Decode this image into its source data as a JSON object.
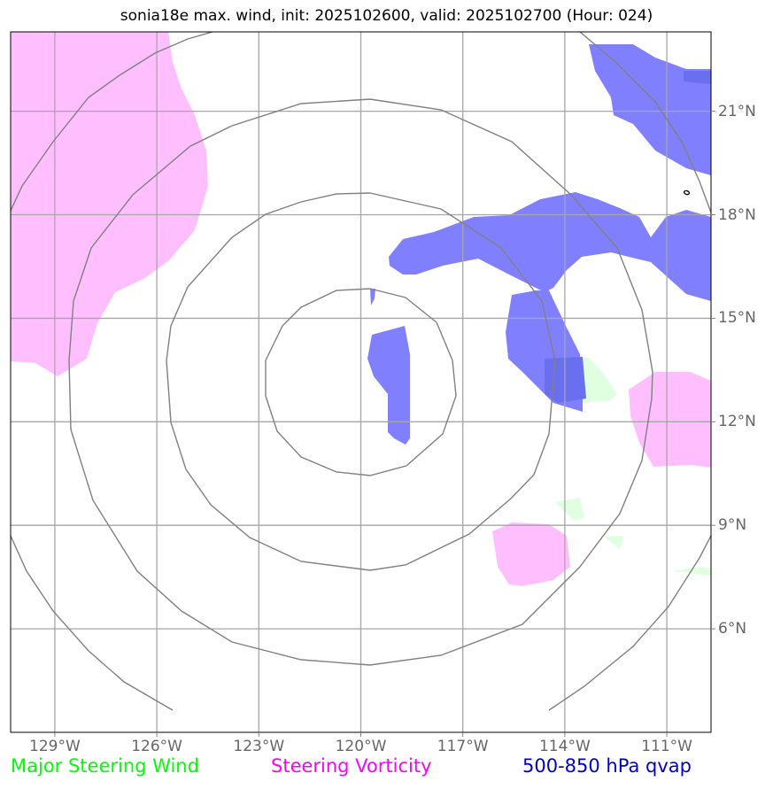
{
  "title": "sonia18e max. wind, init: 2025102600, valid: 2025102700 (Hour: 024)",
  "map": {
    "lon_range": [
      -130.3,
      -109.7
    ],
    "lat_range": [
      3.0,
      23.3
    ],
    "lon_ticks": [
      -129,
      -126,
      -123,
      -120,
      -117,
      -114,
      -111
    ],
    "lat_ticks": [
      6,
      9,
      12,
      15,
      18,
      21
    ],
    "lon_labels": [
      "129°W",
      "126°W",
      "123°W",
      "120°W",
      "117°W",
      "114°W",
      "111°W"
    ],
    "lat_labels": [
      "6°N",
      "9°N",
      "12°N",
      "15°N",
      "18°N",
      "21°N"
    ],
    "grid": true,
    "colors": {
      "grid": "#a6a6a6",
      "range_ring": "#808080",
      "steering_vorticity": "#ffbfff",
      "qvap": "#8080ff",
      "major_steering_wind": "#e0ffe0"
    }
  },
  "legend": {
    "major_steering_wind": {
      "label": "Major Steering Wind",
      "color": "#00ff00"
    },
    "steering_vorticity": {
      "label": "Steering Vorticity",
      "color": "#ff00ff"
    },
    "qvap": {
      "label": "500-850 hPa qvap",
      "color": "#0000cc"
    }
  }
}
